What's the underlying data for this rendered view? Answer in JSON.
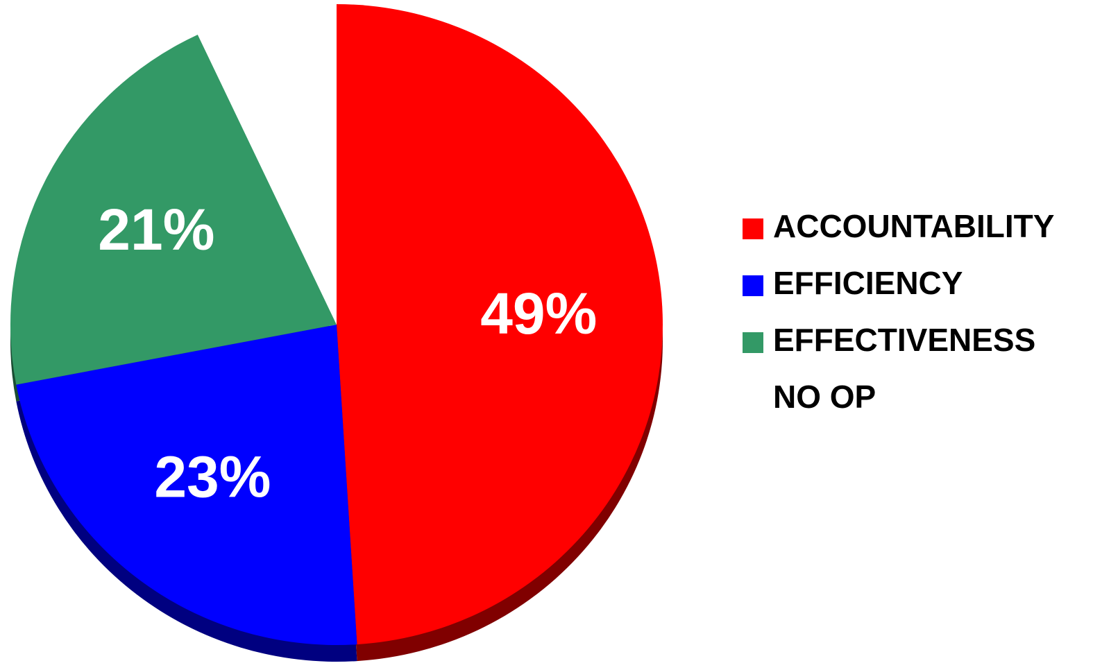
{
  "chart_data": {
    "type": "pie",
    "categories": [
      "ACCOUNTABILITY",
      "EFFICIENCY",
      "EFFECTIVENESS",
      "NO OP"
    ],
    "values": [
      49,
      23,
      21,
      7
    ],
    "data_labels": [
      "49%",
      "23%",
      "21%",
      ""
    ],
    "colors": [
      "#ff0000",
      "#0000ff",
      "#339966",
      "#ffffff"
    ],
    "shadow_colors": [
      "#800000",
      "#000080",
      "#1a4d33",
      "#ffffff"
    ],
    "start_angle_deg": 0,
    "direction": "clockwise",
    "style": "3d-tilted",
    "legend_position": "right",
    "title": ""
  }
}
